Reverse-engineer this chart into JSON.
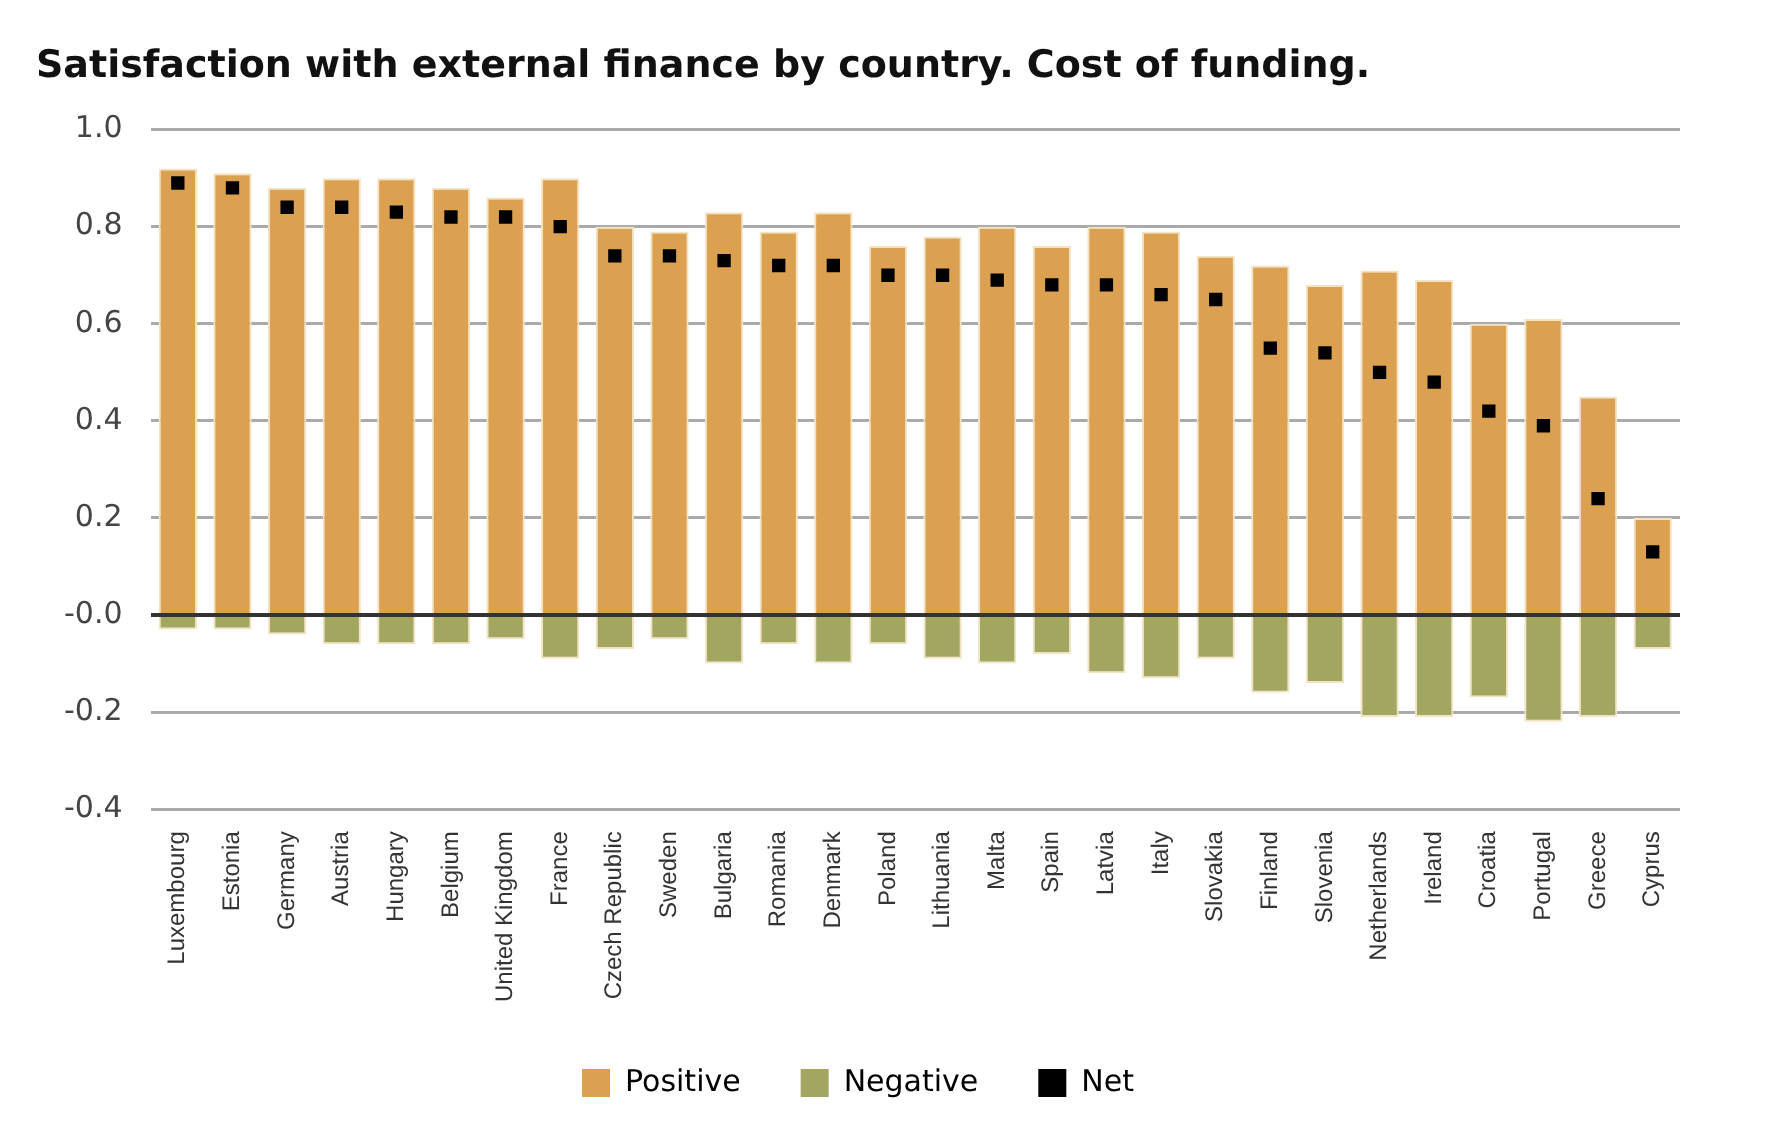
{
  "chart_data": {
    "type": "bar",
    "title": "Satisfaction with external finance by country. Cost of funding.",
    "categories": [
      "Luxembourg",
      "Estonia",
      "Germany",
      "Austria",
      "Hungary",
      "Belgium",
      "United Kingdom",
      "France",
      "Czech Republic",
      "Sweden",
      "Bulgaria",
      "Romania",
      "Denmark",
      "Poland",
      "Lithuania",
      "Malta",
      "Spain",
      "Latvia",
      "Italy",
      "Slovakia",
      "Finland",
      "Slovenia",
      "Netherlands",
      "Ireland",
      "Croatia",
      "Portugal",
      "Greece",
      "Cyprus"
    ],
    "series": [
      {
        "name": "Positive",
        "color": "#dca150",
        "values": [
          0.92,
          0.91,
          0.88,
          0.9,
          0.9,
          0.88,
          0.86,
          0.9,
          0.8,
          0.79,
          0.83,
          0.79,
          0.83,
          0.76,
          0.78,
          0.8,
          0.76,
          0.8,
          0.79,
          0.74,
          0.72,
          0.68,
          0.71,
          0.69,
          0.6,
          0.61,
          0.45,
          0.2
        ]
      },
      {
        "name": "Negative",
        "color": "#a2a661",
        "values": [
          -0.03,
          -0.03,
          -0.04,
          -0.06,
          -0.06,
          -0.06,
          -0.05,
          -0.09,
          -0.07,
          -0.05,
          -0.1,
          -0.06,
          -0.1,
          -0.06,
          -0.09,
          -0.1,
          -0.08,
          -0.12,
          -0.13,
          -0.09,
          -0.16,
          -0.14,
          -0.21,
          -0.21,
          -0.17,
          -0.22,
          -0.21,
          -0.07
        ]
      },
      {
        "name": "Net",
        "type": "scatter",
        "marker": "square",
        "color": "#000000",
        "values": [
          0.89,
          0.88,
          0.84,
          0.84,
          0.83,
          0.82,
          0.82,
          0.8,
          0.74,
          0.74,
          0.73,
          0.72,
          0.72,
          0.7,
          0.7,
          0.69,
          0.68,
          0.68,
          0.66,
          0.65,
          0.55,
          0.54,
          0.5,
          0.48,
          0.42,
          0.39,
          0.24,
          0.13
        ]
      }
    ],
    "stacked": true,
    "ylim": [
      -0.4,
      1.0
    ],
    "yticks": [
      {
        "value": -0.4,
        "label": "-0.4"
      },
      {
        "value": -0.2,
        "label": "-0.2"
      },
      {
        "value": 0,
        "label": "-0.0"
      },
      {
        "value": 0.2,
        "label": "0.2"
      },
      {
        "value": 0.4,
        "label": "0.4"
      },
      {
        "value": 0.6,
        "label": "0.6"
      },
      {
        "value": 0.8,
        "label": "0.8"
      },
      {
        "value": 1.0,
        "label": "1.0"
      }
    ],
    "grid": "y",
    "legend": "bottom"
  }
}
